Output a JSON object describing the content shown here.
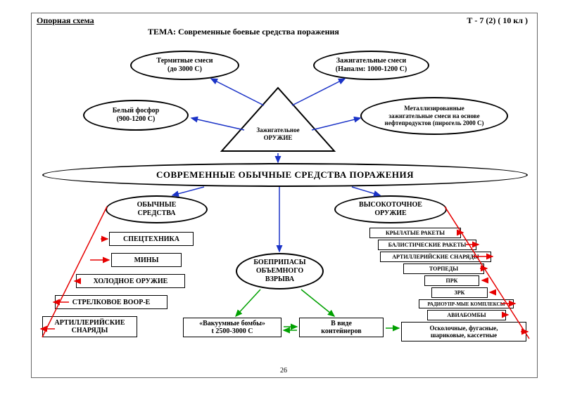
{
  "header": {
    "left": "Опорная схема",
    "right": "Т - 7 (2) ( 10 кл )",
    "theme": "ТЕМА: Современные боевые средства поражения"
  },
  "page_number": "26",
  "colors": {
    "arrow_blue": "#1b33c7",
    "arrow_green": "#00a000",
    "arrow_red": "#e60000",
    "border": "#000000",
    "frame": "#666666"
  },
  "triangle": {
    "label_top": "Зажигательное",
    "label_bottom": "ОРУЖИЕ"
  },
  "top_ellipses": {
    "termite": "Термитные смеси\n(до 3000 С)",
    "incend": "Зажигательные смеси\n(Напалм: 1000-1200 С)",
    "phosphor": "Белый фосфор\n(900-1200 С)",
    "metallic": "Металлизированные\nзажигательные смеси на основе\nнефтепродуктов (пирогель 2000 С)"
  },
  "main_title": "СОВРЕМЕННЫЕ ОБЫЧНЫЕ СРЕДСТВА ПОРАЖЕНИЯ",
  "branch_left": {
    "title": "ОБЫЧНЫЕ\nСРЕДСТВА",
    "items": [
      "СПЕЦТЕХНИКА",
      "МИНЫ",
      "ХОЛОДНОЕ ОРУЖИЕ",
      "СТРЕЛКОВОЕ ВООР-Е",
      "АРТИЛЛЕРИЙСКИЕ\nСНАРЯДЫ"
    ]
  },
  "branch_mid": {
    "title": "БОЕПРИПАСЫ\nОБЪЕМНОГО\nВЗРЫВА",
    "vacuum": "«Вакуумные бомбы»\nt 2500-3000 С",
    "container": "В виде\nконтейнеров"
  },
  "branch_right": {
    "title": "ВЫСОКОТОЧНОЕ\nОРУЖИЕ",
    "items": [
      "КРЫЛАТЫЕ РАКЕТЫ",
      "БАЛИСТИЧЕСКИЕ РАКЕТЫ",
      "АРТИЛЛЕРИЙСКИЕ СНАРЯДЫ",
      "ТОРПЕДЫ",
      "ПРК",
      "ЗРК",
      "РАДИОУПР-МЫЕ КОМПЛЕКСЫ",
      "АВИАБОМБЫ"
    ],
    "footer": "Осколочные, фугасные,\nшариковые, кассетные"
  }
}
